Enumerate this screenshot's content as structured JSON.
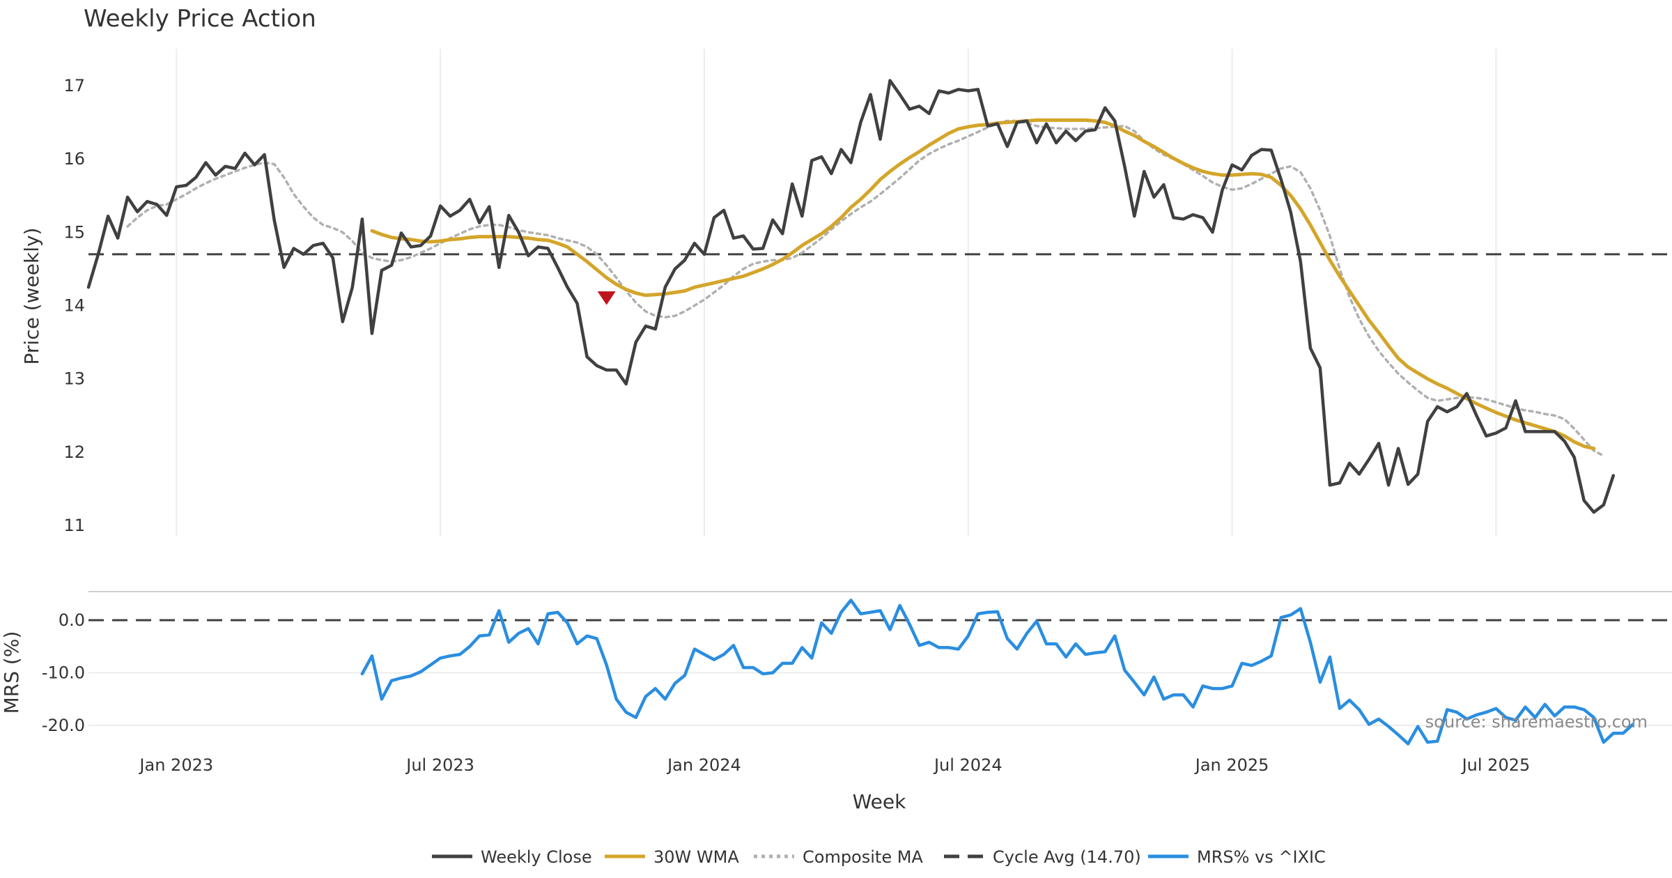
{
  "chart_data": [
    {
      "type": "line",
      "title": "Weekly Price Action",
      "ylabel": "Price (weekly)",
      "ylim": [
        10.85,
        17.5
      ],
      "y_ticks": [
        "11",
        "12",
        "13",
        "14",
        "15",
        "16",
        "17"
      ],
      "grid": "vertical",
      "series": [
        {
          "name": "Weekly Close",
          "color": "#404040",
          "style": "solid",
          "start_week": 0,
          "values": [
            14.25,
            14.7,
            15.22,
            14.92,
            15.48,
            15.28,
            15.42,
            15.38,
            15.23,
            15.62,
            15.64,
            15.75,
            15.95,
            15.78,
            15.9,
            15.87,
            16.08,
            15.92,
            16.06,
            15.17,
            14.52,
            14.78,
            14.7,
            14.82,
            14.85,
            14.65,
            13.78,
            14.25,
            15.18,
            13.62,
            14.48,
            14.55,
            14.99,
            14.8,
            14.82,
            14.95,
            15.36,
            15.22,
            15.3,
            15.45,
            15.13,
            15.35,
            14.52,
            15.23,
            15.0,
            14.68,
            14.8,
            14.78,
            14.52,
            14.25,
            14.03,
            13.3,
            13.18,
            13.12,
            13.12,
            12.93,
            13.5,
            13.72,
            13.68,
            14.25,
            14.5,
            14.62,
            14.85,
            14.7,
            15.2,
            15.3,
            14.92,
            14.95,
            14.77,
            14.78,
            15.17,
            14.98,
            15.66,
            15.22,
            15.98,
            16.03,
            15.8,
            16.13,
            15.95,
            16.5,
            16.88,
            16.27,
            17.07,
            16.88,
            16.68,
            16.72,
            16.62,
            16.93,
            16.9,
            16.95,
            16.93,
            16.95,
            16.45,
            16.48,
            16.17,
            16.5,
            16.52,
            16.22,
            16.48,
            16.22,
            16.38,
            16.25,
            16.38,
            16.4,
            16.7,
            16.52,
            15.9,
            15.22,
            15.83,
            15.48,
            15.65,
            15.2,
            15.18,
            15.24,
            15.2,
            15.0,
            15.58,
            15.92,
            15.85,
            16.05,
            16.13,
            16.12,
            15.72,
            15.27,
            14.6,
            13.42,
            13.15,
            11.55,
            11.58,
            11.85,
            11.7,
            11.9,
            12.12,
            11.55,
            12.05,
            11.56,
            11.7,
            12.42,
            12.62,
            12.55,
            12.62,
            12.8,
            12.5,
            12.22,
            12.26,
            12.33,
            12.7,
            12.28,
            12.28,
            12.28,
            12.28,
            12.15,
            11.93,
            11.34,
            11.18,
            11.28,
            11.68
          ]
        },
        {
          "name": "30W WMA",
          "color": "#d4a52a",
          "style": "solid",
          "start_week": 29,
          "values": [
            15.02,
            14.97,
            14.93,
            14.91,
            14.9,
            14.88,
            14.87,
            14.88,
            14.9,
            14.91,
            14.93,
            14.94,
            14.94,
            14.94,
            14.94,
            14.93,
            14.92,
            14.9,
            14.89,
            14.85,
            14.8,
            14.7,
            14.6,
            14.49,
            14.38,
            14.29,
            14.22,
            14.17,
            14.14,
            14.15,
            14.16,
            14.18,
            14.2,
            14.25,
            14.28,
            14.31,
            14.34,
            14.37,
            14.4,
            14.45,
            14.5,
            14.56,
            14.63,
            14.72,
            14.82,
            14.9,
            14.98,
            15.08,
            15.2,
            15.34,
            15.45,
            15.58,
            15.72,
            15.83,
            15.93,
            16.02,
            16.1,
            16.19,
            16.27,
            16.35,
            16.41,
            16.44,
            16.46,
            16.47,
            16.49,
            16.5,
            16.51,
            16.52,
            16.53,
            16.53,
            16.53,
            16.53,
            16.53,
            16.53,
            16.52,
            16.5,
            16.45,
            16.38,
            16.32,
            16.24,
            16.17,
            16.09,
            16.01,
            15.94,
            15.88,
            15.83,
            15.8,
            15.78,
            15.78,
            15.79,
            15.8,
            15.79,
            15.75,
            15.64,
            15.5,
            15.32,
            15.1,
            14.86,
            14.62,
            14.4,
            14.2,
            14.0,
            13.8,
            13.63,
            13.45,
            13.28,
            13.16,
            13.08,
            13.0,
            12.93,
            12.87,
            12.8,
            12.73,
            12.66,
            12.6,
            12.54,
            12.49,
            12.44,
            12.4,
            12.36,
            12.32,
            12.28,
            12.22,
            12.14,
            12.08,
            12.05
          ]
        },
        {
          "name": "Composite MA",
          "color": "#b0b0b0",
          "style": "dotted",
          "start_week": 4,
          "values": [
            15.08,
            15.2,
            15.3,
            15.36,
            15.38,
            15.45,
            15.52,
            15.6,
            15.67,
            15.73,
            15.78,
            15.83,
            15.88,
            15.92,
            15.95,
            15.93,
            15.75,
            15.52,
            15.35,
            15.2,
            15.1,
            15.06,
            15.0,
            14.88,
            14.72,
            14.65,
            14.62,
            14.6,
            14.62,
            14.66,
            14.72,
            14.78,
            14.85,
            14.92,
            14.98,
            15.04,
            15.08,
            15.1,
            15.1,
            15.07,
            15.03,
            15.0,
            14.98,
            14.96,
            14.92,
            14.89,
            14.86,
            14.8,
            14.7,
            14.55,
            14.38,
            14.2,
            14.04,
            13.92,
            13.86,
            13.84,
            13.86,
            13.92,
            14.0,
            14.08,
            14.18,
            14.28,
            14.4,
            14.5,
            14.57,
            14.6,
            14.62,
            14.62,
            14.65,
            14.72,
            14.82,
            14.92,
            15.04,
            15.15,
            15.25,
            15.34,
            15.42,
            15.52,
            15.63,
            15.74,
            15.86,
            15.98,
            16.07,
            16.14,
            16.2,
            16.25,
            16.31,
            16.37,
            16.43,
            16.49,
            16.52,
            16.52,
            16.49,
            16.45,
            16.43,
            16.42,
            16.41,
            16.41,
            16.41,
            16.42,
            16.43,
            16.44,
            16.45,
            16.38,
            16.25,
            16.14,
            16.06,
            16.0,
            15.93,
            15.85,
            15.77,
            15.68,
            15.62,
            15.58,
            15.6,
            15.66,
            15.73,
            15.8,
            15.87,
            15.9,
            15.82,
            15.6,
            15.3,
            14.95,
            14.5,
            14.12,
            13.82,
            13.58,
            13.38,
            13.22,
            13.07,
            12.95,
            12.84,
            12.74,
            12.7,
            12.72,
            12.74,
            12.75,
            12.74,
            12.72,
            12.68,
            12.64,
            12.6,
            12.57,
            12.55,
            12.52,
            12.5,
            12.45,
            12.32,
            12.17,
            12.02,
            11.95
          ]
        },
        {
          "name": "Cycle Avg (14.70)",
          "color": "#404040",
          "style": "dashed",
          "value": 14.7
        }
      ],
      "annotations": [
        {
          "type": "marker",
          "shape": "triangle-down",
          "color": "#c0141c",
          "week": 53,
          "value": 14.12
        }
      ]
    },
    {
      "type": "line",
      "ylabel": "MRS (%)",
      "xlabel": "Week",
      "ylim": [
        -24,
        5
      ],
      "y_ticks": [
        "0.0",
        "-10.0",
        "-20.0"
      ],
      "x_ticks": [
        "Jan 2023",
        "Jul 2023",
        "Jan 2024",
        "Jul 2024",
        "Jan 2025",
        "Jul 2025"
      ],
      "x_tick_weeks": [
        9,
        36,
        63,
        90,
        117,
        144
      ],
      "x_range_weeks": [
        0,
        162
      ],
      "grid": "horizontal",
      "series": [
        {
          "name": "MRS% vs ^IXIC",
          "color": "#2a8ee0",
          "style": "solid",
          "start_week": 28,
          "values": [
            -10.2,
            -6.8,
            -15.0,
            -11.5,
            -11.0,
            -10.6,
            -9.8,
            -8.5,
            -7.2,
            -6.8,
            -6.5,
            -5.0,
            -3.0,
            -2.8,
            1.8,
            -4.2,
            -2.5,
            -1.6,
            -4.5,
            1.2,
            1.5,
            -0.5,
            -4.5,
            -3.0,
            -3.5,
            -8.5,
            -15.0,
            -17.5,
            -18.5,
            -14.5,
            -13.0,
            -15.0,
            -12.0,
            -10.5,
            -5.5,
            -6.5,
            -7.5,
            -6.5,
            -4.8,
            -9.0,
            -9.0,
            -10.2,
            -10.0,
            -8.2,
            -8.2,
            -5.2,
            -7.2,
            -0.5,
            -2.5,
            1.5,
            3.8,
            1.2,
            1.5,
            1.8,
            -1.8,
            2.8,
            -0.8,
            -4.8,
            -4.2,
            -5.2,
            -5.2,
            -5.5,
            -3.0,
            1.2,
            1.5,
            1.6,
            -3.5,
            -5.5,
            -2.5,
            -0.2,
            -4.5,
            -4.5,
            -7.0,
            -4.5,
            -6.5,
            -6.2,
            -6.0,
            -3.0,
            -9.5,
            -11.8,
            -14.2,
            -10.8,
            -15.0,
            -14.2,
            -14.2,
            -16.5,
            -12.5,
            -13.0,
            -13.0,
            -12.5,
            -8.2,
            -8.6,
            -7.8,
            -6.8,
            0.5,
            1.0,
            2.2,
            -4.2,
            -11.8,
            -7.0,
            -16.8,
            -15.2,
            -17.0,
            -19.8,
            -18.8,
            -20.2,
            -21.8,
            -23.5,
            -20.2,
            -23.2,
            -23.0,
            -17.0,
            -17.5,
            -18.8,
            -18.0,
            -17.5,
            -16.8,
            -18.5,
            -19.0,
            -16.5,
            -18.5,
            -16.0,
            -18.2,
            -16.5,
            -16.5,
            -17.0,
            -18.5,
            -23.2,
            -21.5,
            -21.5,
            -19.8
          ]
        },
        {
          "name": "zero-line",
          "color": "#404040",
          "style": "dashed",
          "value": 0
        }
      ]
    }
  ],
  "legend": {
    "placement": "bottom-center",
    "items": [
      {
        "label": "Weekly Close",
        "color": "#404040",
        "style": "solid"
      },
      {
        "label": "30W WMA",
        "color": "#d4a52a",
        "style": "solid"
      },
      {
        "label": "Composite MA",
        "color": "#b0b0b0",
        "style": "dotted"
      },
      {
        "label": "Cycle Avg (14.70)",
        "color": "#404040",
        "style": "dashed"
      },
      {
        "label": "MRS% vs ^IXIC",
        "color": "#2a8ee0",
        "style": "solid"
      }
    ]
  },
  "source": "source: sharemaestro.com"
}
